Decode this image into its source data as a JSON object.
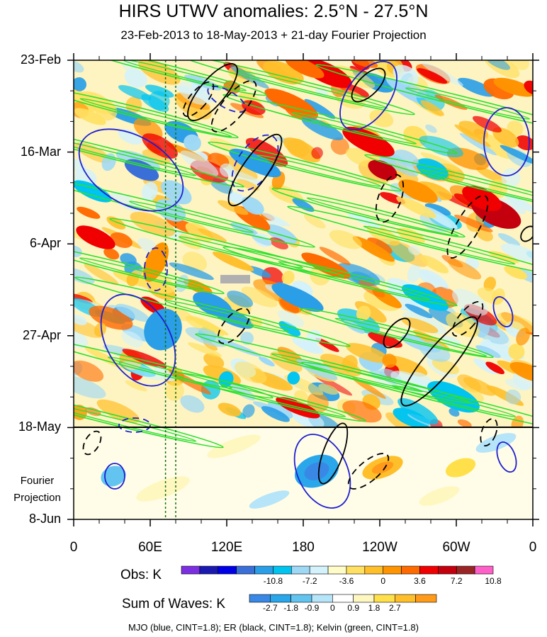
{
  "chart_data": {
    "type": "heatmap",
    "title": "HIRS UTWV anomalies: 2.5°N - 27.5°N",
    "subtitle": "23-Feb-2013 to 18-May-2013 + 21-day Fourier Projection",
    "x_ticks": [
      "0",
      "60E",
      "120E",
      "180",
      "120W",
      "60W",
      "0"
    ],
    "x_tick_longitudes": [
      0,
      60,
      120,
      180,
      240,
      300,
      360
    ],
    "xlim": [
      0,
      360
    ],
    "y_ticks": [
      "23-Feb",
      "16-Mar",
      "6-Apr",
      "27-Apr",
      "18-May",
      "8-Jun"
    ],
    "y_tick_days": [
      0,
      21,
      42,
      63,
      84,
      105
    ],
    "ylim_days": [
      0,
      105
    ],
    "observation_end_day": 84,
    "projection_label": [
      "Fourier",
      "Projection"
    ],
    "reference_longitudes": [
      72,
      80
    ],
    "obs_colorbar": {
      "label": "Obs: K",
      "tick_labels": [
        "-10.8",
        "-7.2",
        "-3.6",
        "0",
        "3.6",
        "7.2",
        "10.8"
      ],
      "levels": [
        -10.8,
        -7.2,
        -3.6,
        0,
        3.6,
        7.2,
        10.8
      ],
      "colors": [
        "#7b2fe0",
        "#1a1ab0",
        "#0000e6",
        "#3a6fd8",
        "#2a9ee6",
        "#00c4f0",
        "#9ed8f5",
        "#d4f2fb",
        "#fffcc8",
        "#ffe060",
        "#ffbf2a",
        "#ff9300",
        "#ff6a00",
        "#f00000",
        "#c4000f",
        "#9a2525",
        "#ff5fc8"
      ]
    },
    "waves_colorbar": {
      "label": "Sum of Waves: K",
      "tick_labels": [
        "-2.7",
        "-1.8",
        "-0.9",
        "0",
        "0.9",
        "1.8",
        "2.7"
      ],
      "levels": [
        -2.7,
        -1.8,
        -0.9,
        0,
        0.9,
        1.8,
        2.7
      ],
      "colors": [
        "#3a88e6",
        "#2aa6ea",
        "#63c4f0",
        "#b6e4f8",
        "#ffffff",
        "#fff7c0",
        "#ffe04a",
        "#ffbf2a",
        "#ff9a1a"
      ]
    },
    "contours": [
      {
        "name": "MJO",
        "color": "blue",
        "cint": 1.8
      },
      {
        "name": "ER",
        "color": "black",
        "cint": 1.8
      },
      {
        "name": "Kelvin",
        "color": "green",
        "cint": 1.8
      }
    ],
    "footer": "MJO (blue, CINT=1.8); ER (black, CINT=1.8); Kelvin (green, CINT=1.8)"
  }
}
